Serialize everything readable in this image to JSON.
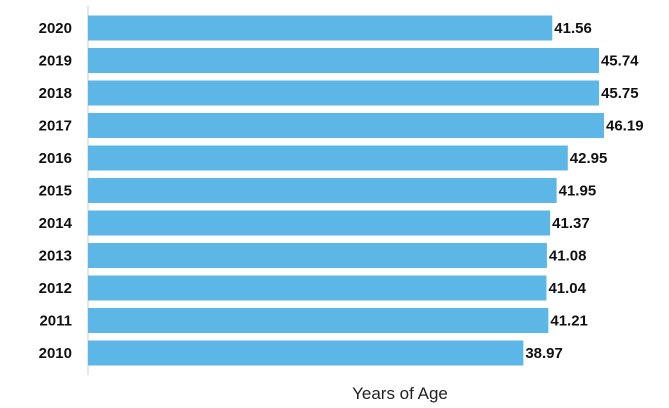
{
  "chart_data": {
    "type": "bar",
    "orientation": "horizontal",
    "categories": [
      "2020",
      "2019",
      "2018",
      "2017",
      "2016",
      "2015",
      "2014",
      "2013",
      "2012",
      "2011",
      "2010"
    ],
    "values": [
      41.56,
      45.74,
      45.75,
      46.19,
      42.95,
      41.95,
      41.37,
      41.08,
      41.04,
      41.21,
      38.97
    ],
    "value_labels": [
      "41.56",
      "45.74",
      "45.75",
      "46.19",
      "42.95",
      "41.95",
      "41.37",
      "41.08",
      "41.04",
      "41.21",
      "38.97"
    ],
    "title": "",
    "xlabel": "Years of Age",
    "ylabel": "",
    "xlim": [
      0,
      46.19
    ],
    "grid": false,
    "legend": "none",
    "bar_color": "#5cb7e6"
  }
}
